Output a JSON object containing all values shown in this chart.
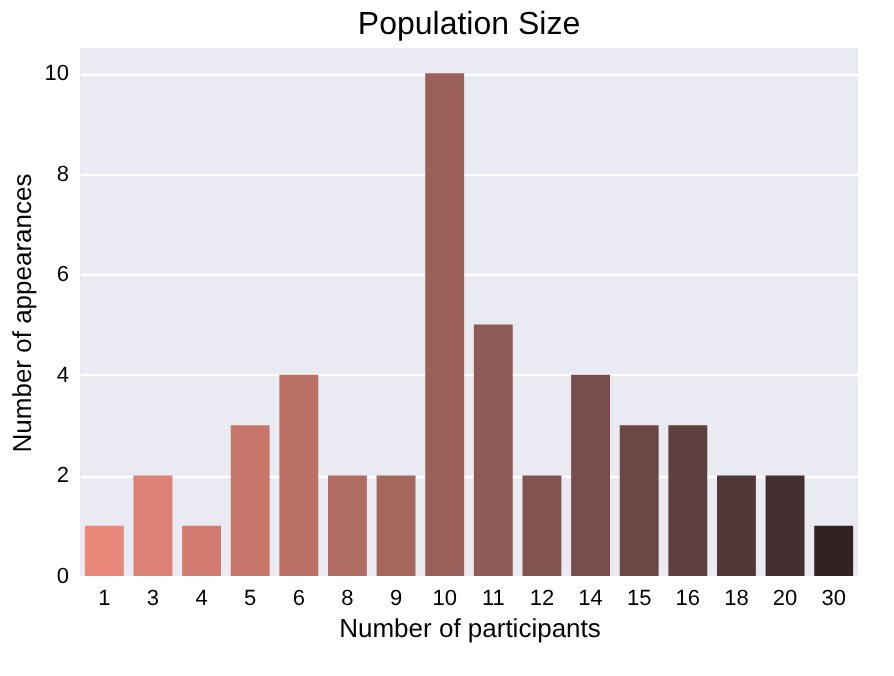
{
  "chart_data": {
    "type": "bar",
    "title": "Population Size",
    "xlabel": "Number of participants",
    "ylabel": "Number of appearances",
    "categories": [
      "1",
      "3",
      "4",
      "5",
      "6",
      "8",
      "9",
      "10",
      "11",
      "12",
      "14",
      "15",
      "16",
      "18",
      "20",
      "30"
    ],
    "values": [
      1,
      2,
      1,
      3,
      4,
      2,
      2,
      10,
      5,
      2,
      4,
      3,
      3,
      2,
      2,
      1
    ],
    "colors": [
      "#e8877a",
      "#dc8175",
      "#d17b70",
      "#c7766b",
      "#bc7167",
      "#b06b62",
      "#a5665e",
      "#9a6059",
      "#8e5a55",
      "#825450",
      "#774e4b",
      "#6b4745",
      "#5e403f",
      "#513838",
      "#432f2f",
      "#312323"
    ],
    "ylim": [
      0,
      10.5
    ],
    "yticks": [
      0,
      2,
      4,
      6,
      8,
      10
    ],
    "grid": "y"
  }
}
